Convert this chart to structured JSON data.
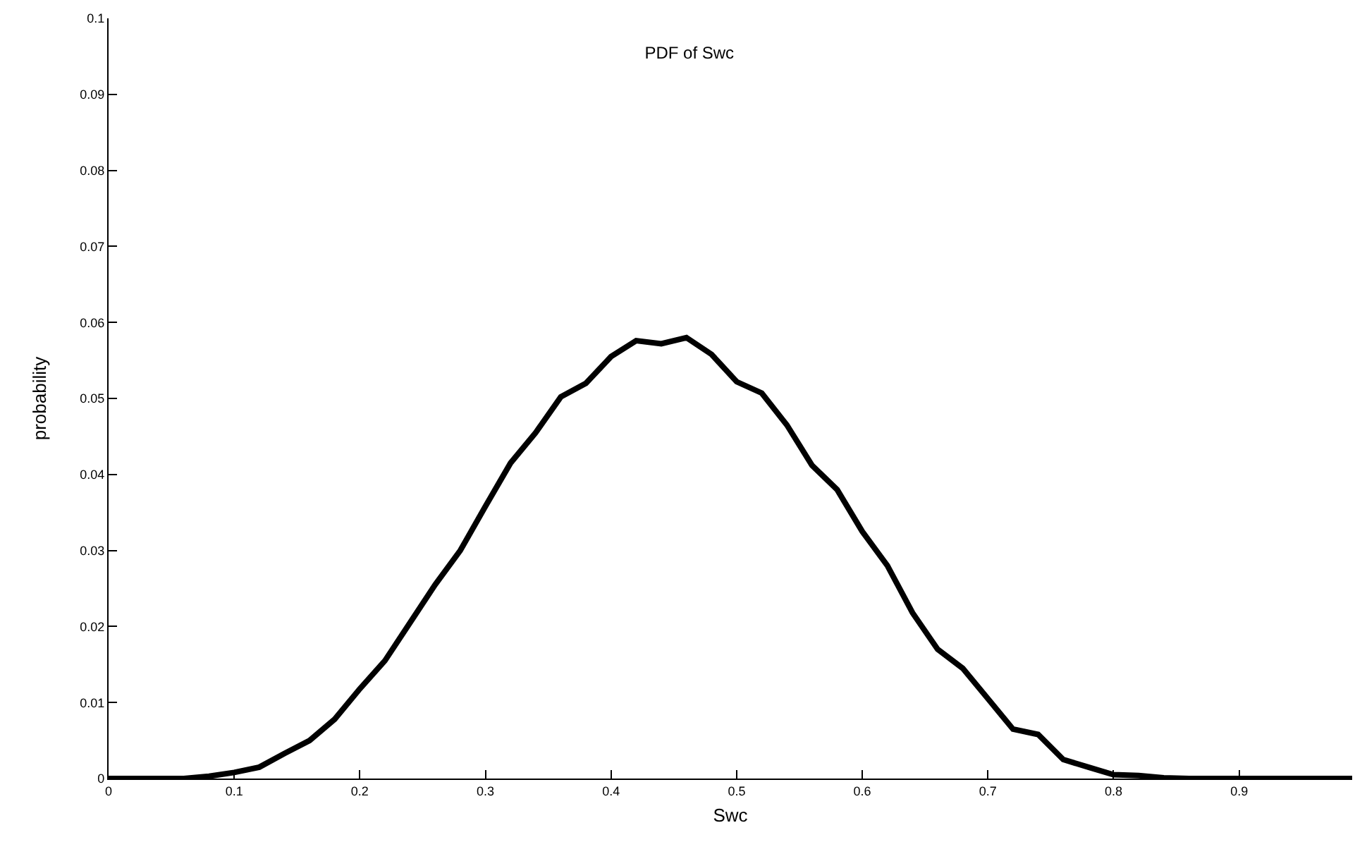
{
  "chart_data": {
    "type": "line",
    "title": "PDF of Swc",
    "xlabel": "Swc",
    "ylabel": "probability",
    "x": [
      0,
      0.02,
      0.04,
      0.06,
      0.08,
      0.1,
      0.12,
      0.14,
      0.16,
      0.18,
      0.2,
      0.22,
      0.24,
      0.26,
      0.28,
      0.3,
      0.32,
      0.34,
      0.36,
      0.38,
      0.4,
      0.42,
      0.44,
      0.46,
      0.48,
      0.5,
      0.52,
      0.54,
      0.56,
      0.58,
      0.6,
      0.62,
      0.64,
      0.66,
      0.68,
      0.7,
      0.72,
      0.74,
      0.76,
      0.78,
      0.8,
      0.82,
      0.84,
      0.86,
      0.88,
      0.9,
      0.92,
      0.94,
      0.96,
      0.99
    ],
    "series": [
      {
        "color": "#000000",
        "values": [
          0,
          0,
          0,
          0,
          0.0003,
          0.0008,
          0.0015,
          0.0033,
          0.005,
          0.0078,
          0.0118,
          0.0155,
          0.0205,
          0.0255,
          0.03,
          0.0358,
          0.0415,
          0.0455,
          0.0502,
          0.052,
          0.0555,
          0.0576,
          0.0572,
          0.058,
          0.0558,
          0.0522,
          0.0507,
          0.0465,
          0.0412,
          0.038,
          0.0325,
          0.028,
          0.0218,
          0.017,
          0.0145,
          0.0105,
          0.0065,
          0.0058,
          0.0025,
          0.0015,
          0.0005,
          0.0004,
          0.0001,
          0,
          0,
          0,
          0,
          0,
          0,
          0
        ]
      }
    ],
    "xlim": [
      0,
      0.99
    ],
    "xticks": [
      0,
      0.1,
      0.2,
      0.3,
      0.4,
      0.5,
      0.6,
      0.7,
      0.8,
      0.9
    ],
    "ylim": [
      0,
      0.1
    ],
    "yticks": [
      0,
      0.01,
      0.02,
      0.03,
      0.04,
      0.05,
      0.06,
      0.07,
      0.08,
      0.09,
      0.1
    ],
    "marker": "none",
    "line_style": "solid"
  }
}
